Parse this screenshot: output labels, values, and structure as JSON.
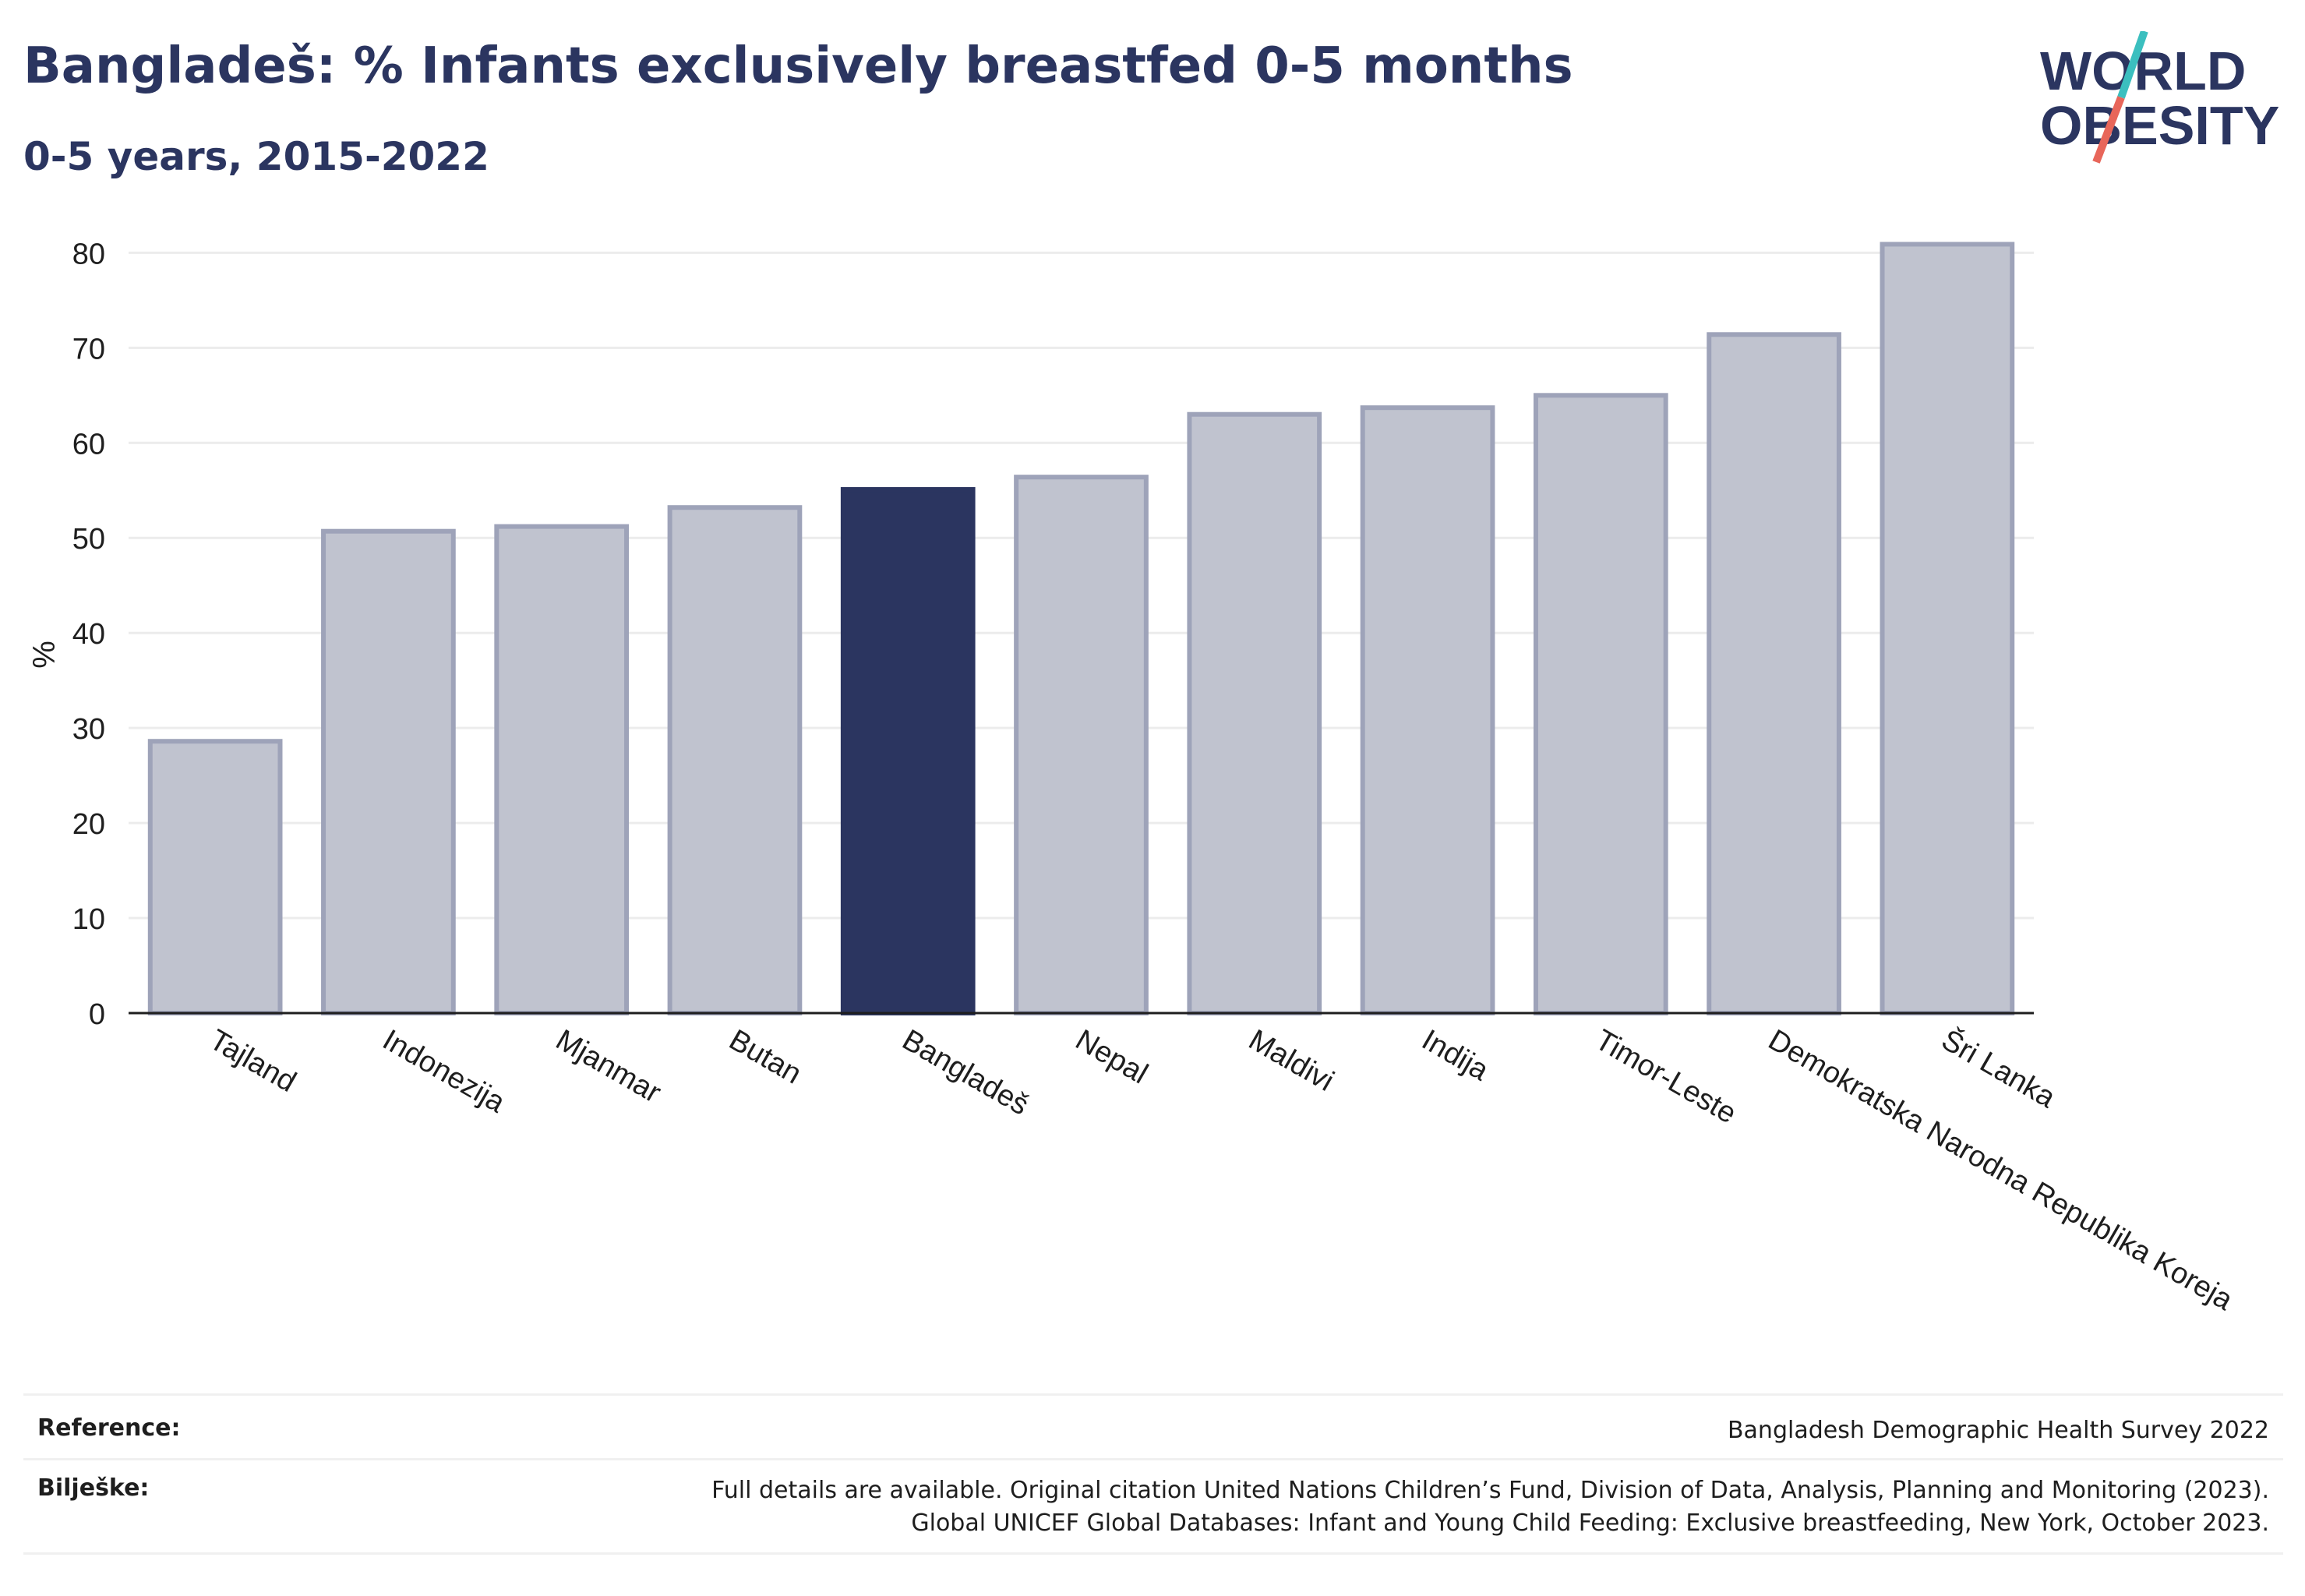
{
  "header": {
    "title": "Bangladeš: % Infants exclusively breastfed 0-5 months",
    "subtitle": "0-5 years, 2015-2022"
  },
  "logo": {
    "line1": "WORLD",
    "line2": "OBESITY",
    "text_color": "#2b3560",
    "slash_teal": "#3bbfbf",
    "slash_red": "#e8665a"
  },
  "colors": {
    "bar_default": "#c0c3cf",
    "bar_default_border": "#9ea3b9",
    "bar_highlight": "#2b3560"
  },
  "chart_data": {
    "type": "bar",
    "categories": [
      "Tajland",
      "Indonezija",
      "Mjanmar",
      "Butan",
      "Bangladeš",
      "Nepal",
      "Maldivi",
      "Indija",
      "Timor-Leste",
      "Demokratska Narodna Republika Koreja",
      "Šri Lanka"
    ],
    "values": [
      28.6,
      50.7,
      51.2,
      53.2,
      55.1,
      56.4,
      63.0,
      63.7,
      65.0,
      71.4,
      80.9
    ],
    "highlight": "Bangladeš",
    "xlabel": "",
    "ylabel": "%",
    "ylim": [
      0,
      82
    ],
    "yticks": [
      0,
      10,
      20,
      30,
      40,
      50,
      60,
      70,
      80
    ],
    "grid": true
  },
  "footer": {
    "reference_label": "Reference:",
    "reference_value": "Bangladesh Demographic Health Survey 2022",
    "notes_label": "Bilješke:",
    "notes_line1": "Full details are available. Original citation United Nations Children’s Fund, Division of Data, Analysis, Planning and Monitoring (2023).",
    "notes_line2": "Global UNICEF Global Databases: Infant and Young Child Feeding: Exclusive breastfeeding, New York, October 2023."
  }
}
